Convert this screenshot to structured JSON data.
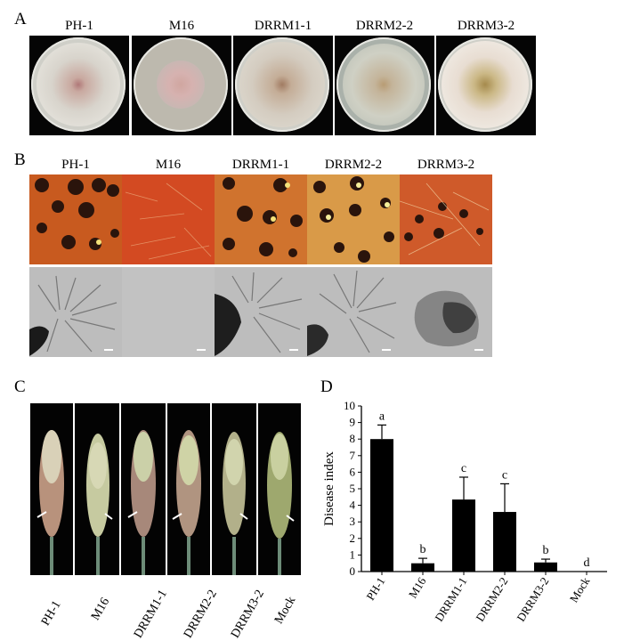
{
  "panels": {
    "a": {
      "letter": "A",
      "strains": [
        "PH-1",
        "M16",
        "DRRM1-1",
        "DRRM2-2",
        "DRRM3-2"
      ]
    },
    "b": {
      "letter": "B",
      "strains": [
        "PH-1",
        "M16",
        "DRRM1-1",
        "DRRM2-2",
        "DRRM3-2"
      ]
    },
    "c": {
      "letter": "C",
      "strains": [
        "PH-1",
        "M16",
        "DRRM1-1",
        "DRRM2-2",
        "DRRM3-2",
        "Mock"
      ]
    },
    "d": {
      "letter": "D"
    }
  },
  "colors": {
    "bar": "#000000",
    "plate_colony_ph1": "#c9a9a0",
    "plate_colony_drrm3": "#e8ddd2",
    "perithecia_bg": "#d3541c"
  },
  "chart_data": {
    "type": "bar",
    "title": "",
    "xlabel": "",
    "ylabel": "Disease index",
    "ylim": [
      0,
      10
    ],
    "yticks": [
      "0",
      "1",
      "2",
      "3",
      "4",
      "5",
      "6",
      "7",
      "8",
      "9",
      "10"
    ],
    "categories": [
      "PH-1",
      "M16",
      "DRRM1-1",
      "DRRM2-2",
      "DRRM3-2",
      "Mock"
    ],
    "values": [
      8.0,
      0.5,
      4.35,
      3.6,
      0.55,
      0
    ],
    "errors": [
      0.85,
      0.3,
      1.35,
      1.7,
      0.2,
      0
    ],
    "significance": [
      "a",
      "b",
      "c",
      "c",
      "b",
      "d"
    ]
  }
}
